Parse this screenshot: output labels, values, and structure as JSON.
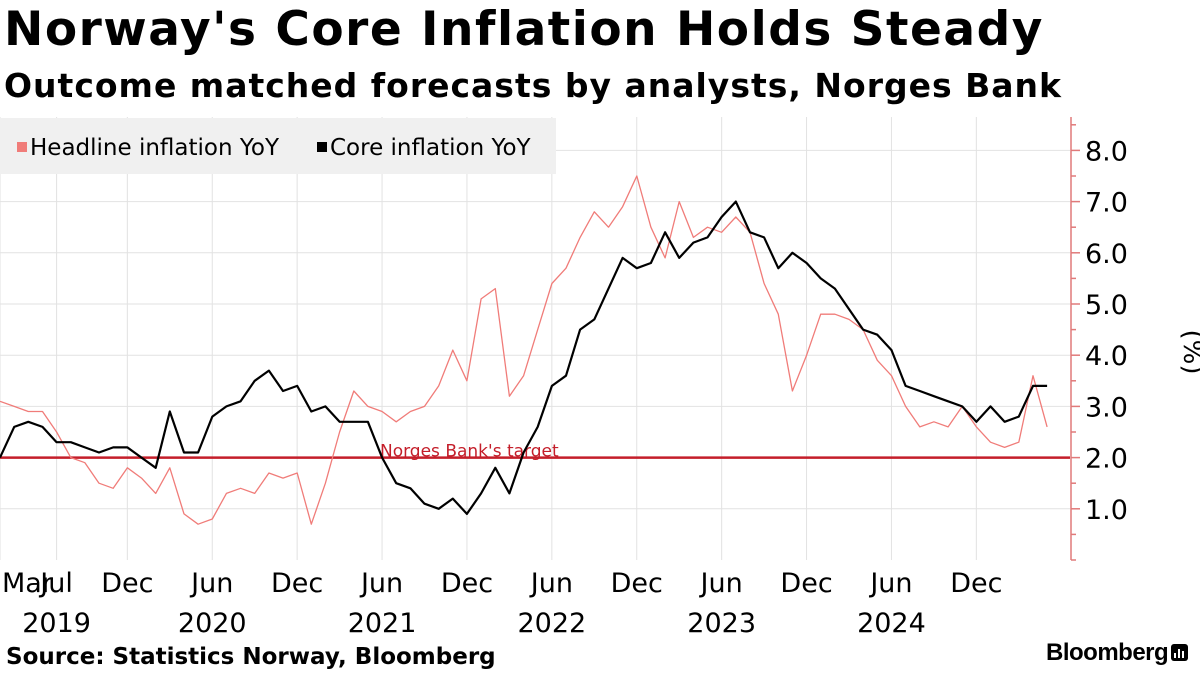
{
  "header": {
    "title": "Norway's Core Inflation Holds Steady",
    "subtitle": "Outcome matched forecasts by analysts, Norges Bank"
  },
  "footer": {
    "source": "Source: Statistics Norway, Bloomberg",
    "brand": "Bloomberg"
  },
  "colors": {
    "headline": "#f07c79",
    "core": "#000000",
    "target": "#c41e2a",
    "axis": "#e07a7a",
    "grid": "#e2e2e2",
    "legend_bg": "#f0f0f0"
  },
  "chart_data": {
    "type": "line",
    "title": "Norway's Core Inflation Holds Steady",
    "subtitle": "Outcome matched forecasts by analysts, Norges Bank",
    "ylabel": "(%)",
    "ylim": [
      0,
      8.6
    ],
    "yticks": [
      1.0,
      2.0,
      3.0,
      4.0,
      5.0,
      6.0,
      7.0,
      8.0
    ],
    "ytick_labels": [
      "1.0",
      "2.0",
      "3.0",
      "4.0",
      "5.0",
      "6.0",
      "7.0",
      "8.0"
    ],
    "x_start": "2019-03",
    "x_ticks": [
      {
        "index": 0,
        "label": "Mar"
      },
      {
        "index": 4,
        "label": "Jul"
      },
      {
        "index": 9,
        "label": "Dec"
      },
      {
        "index": 15,
        "label": "Jun"
      },
      {
        "index": 21,
        "label": "Dec"
      },
      {
        "index": 27,
        "label": "Jun"
      },
      {
        "index": 33,
        "label": "Dec"
      },
      {
        "index": 39,
        "label": "Jun"
      },
      {
        "index": 45,
        "label": "Dec"
      },
      {
        "index": 51,
        "label": "Jun"
      },
      {
        "index": 57,
        "label": "Dec"
      },
      {
        "index": 63,
        "label": "Jun"
      },
      {
        "index": 69,
        "label": "Dec"
      }
    ],
    "year_labels": [
      {
        "index": 4,
        "label": "2019"
      },
      {
        "index": 15,
        "label": "2020"
      },
      {
        "index": 27,
        "label": "2021"
      },
      {
        "index": 39,
        "label": "2022"
      },
      {
        "index": 51,
        "label": "2023"
      },
      {
        "index": 63,
        "label": "2024"
      }
    ],
    "legend": [
      "Headline inflation YoY",
      "Core inflation YoY"
    ],
    "series": [
      {
        "name": "Headline inflation YoY",
        "values": [
          3.1,
          3.0,
          2.9,
          2.9,
          2.5,
          2.0,
          1.9,
          1.5,
          1.4,
          1.8,
          1.6,
          1.3,
          1.8,
          0.9,
          0.7,
          0.8,
          1.3,
          1.4,
          1.3,
          1.7,
          1.6,
          1.7,
          0.7,
          1.5,
          2.5,
          3.3,
          3.0,
          2.9,
          2.7,
          2.9,
          3.0,
          3.4,
          4.1,
          3.5,
          5.1,
          5.3,
          3.2,
          3.6,
          4.5,
          5.4,
          5.7,
          6.3,
          6.8,
          6.5,
          6.9,
          7.5,
          6.5,
          5.9,
          7.0,
          6.3,
          6.5,
          6.4,
          6.7,
          6.4,
          5.4,
          4.8,
          3.3,
          4.0,
          4.8,
          4.8,
          4.7,
          4.5,
          3.9,
          3.6,
          3.0,
          2.6,
          2.7,
          2.6,
          3.0,
          2.6,
          2.3,
          2.2,
          2.3,
          3.6,
          2.6
        ]
      },
      {
        "name": "Core inflation YoY",
        "values": [
          2.0,
          2.6,
          2.7,
          2.6,
          2.3,
          2.3,
          2.2,
          2.1,
          2.2,
          2.2,
          2.0,
          1.8,
          2.9,
          2.1,
          2.1,
          2.8,
          3.0,
          3.1,
          3.5,
          3.7,
          3.3,
          3.4,
          2.9,
          3.0,
          2.7,
          2.7,
          2.7,
          2.0,
          1.5,
          1.4,
          1.1,
          1.0,
          1.2,
          0.9,
          1.3,
          1.8,
          1.3,
          2.1,
          2.6,
          3.4,
          3.6,
          4.5,
          4.7,
          5.3,
          5.9,
          5.7,
          5.8,
          6.4,
          5.9,
          6.2,
          6.3,
          6.7,
          7.0,
          6.4,
          6.3,
          5.7,
          6.0,
          5.8,
          5.5,
          5.3,
          4.9,
          4.5,
          4.4,
          4.1,
          3.4,
          3.3,
          3.2,
          3.1,
          3.0,
          2.7,
          3.0,
          2.7,
          2.8,
          3.4,
          3.4
        ]
      }
    ],
    "reference_line": {
      "value": 2.0,
      "label": "Norges Bank's target"
    }
  }
}
